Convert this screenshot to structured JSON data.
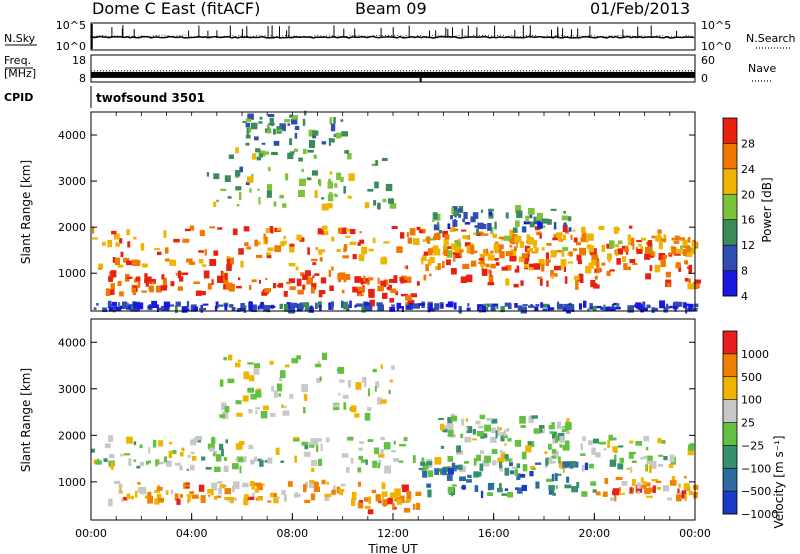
{
  "header": {
    "station": "Dome C East (fitACF)",
    "beam": "Beam 09",
    "date": "01/Feb/2013"
  },
  "side_labels": {
    "nsky": "N.Sky",
    "nsearch": "N.Search",
    "freq_line1": "Freq.",
    "freq_line2": "[MHz]",
    "nave": "Nave",
    "cpid": "CPID"
  },
  "cpid_value": "twofsound 3501",
  "chart_data": [
    {
      "type": "line",
      "name": "noise-panel",
      "left_ticks": [
        "10^5",
        "10^0"
      ],
      "right_ticks": [
        "10^5",
        "10^0"
      ],
      "note": "N.Sky solid trace near baseline with intermittent spikes; N.Search dotted"
    },
    {
      "type": "line",
      "name": "freq-nave-panel",
      "left_ticks": [
        "18",
        "8"
      ],
      "right_ticks": [
        "60",
        "0"
      ],
      "freq_level_mhz": 11,
      "nave_level": 25
    },
    {
      "type": "heatmap",
      "name": "power",
      "ylabel": "Slant Range [km]",
      "ylim": [
        180,
        4500
      ],
      "y_ticks": [
        1000,
        2000,
        3000,
        4000
      ],
      "colorbar": {
        "label": "Power [dB]",
        "ticks": [
          "28",
          "24",
          "20",
          "16",
          "12",
          "8",
          "4"
        ],
        "colors": [
          "#1818e0",
          "#2f4fb0",
          "#3b8a5a",
          "#7cc23a",
          "#f0b400",
          "#f07800",
          "#e82010"
        ]
      },
      "regions": [
        {
          "t": [
            0,
            24
          ],
          "r": [
            1100,
            2000
          ],
          "level": 0.78
        },
        {
          "t": [
            0.5,
            11
          ],
          "r": [
            550,
            1000
          ],
          "level": 0.9
        },
        {
          "t": [
            10.5,
            13
          ],
          "r": [
            300,
            900
          ],
          "level": 0.95
        },
        {
          "t": [
            12.8,
            24
          ],
          "r": [
            700,
            1500
          ],
          "level": 0.8
        },
        {
          "t": [
            13,
            24
          ],
          "r": [
            1400,
            1800
          ],
          "level": 0.7
        },
        {
          "t": [
            4.5,
            12
          ],
          "r": [
            2400,
            3700
          ],
          "level": 0.45
        },
        {
          "t": [
            13.5,
            19
          ],
          "r": [
            1900,
            2400
          ],
          "level": 0.3
        },
        {
          "t": [
            6,
            10
          ],
          "r": [
            3800,
            4500
          ],
          "level": 0.35
        },
        {
          "t": [
            0,
            24
          ],
          "r": [
            200,
            330
          ],
          "level": 0.15
        }
      ]
    },
    {
      "type": "heatmap",
      "name": "velocity",
      "ylabel": "Slant Range [km]",
      "xlabel": "Time UT",
      "x_ticks": [
        "00:00",
        "04:00",
        "08:00",
        "12:00",
        "16:00",
        "20:00",
        "00:00"
      ],
      "ylim": [
        180,
        4500
      ],
      "y_ticks": [
        1000,
        2000,
        3000,
        4000
      ],
      "colorbar": {
        "label": "Velocity [m s⁻¹]",
        "ticks": [
          "1000",
          "500",
          "100",
          "25",
          "−25",
          "−100",
          "−500",
          "−1000"
        ],
        "colors": [
          "#1a3ac8",
          "#2d6aa0",
          "#37906a",
          "#63c040",
          "#c8c8c8",
          "#f0b400",
          "#f08000",
          "#e81e1e"
        ]
      },
      "regions": [
        {
          "t": [
            0,
            24
          ],
          "r": [
            1250,
            1950
          ],
          "level": 0.5
        },
        {
          "t": [
            0.5,
            11
          ],
          "r": [
            550,
            1000
          ],
          "level": 0.72
        },
        {
          "t": [
            10.5,
            13
          ],
          "r": [
            350,
            950
          ],
          "level": 0.75
        },
        {
          "t": [
            13,
            20
          ],
          "r": [
            700,
            1400
          ],
          "level": 0.25
        },
        {
          "t": [
            20,
            24
          ],
          "r": [
            600,
            1100
          ],
          "level": 0.74
        },
        {
          "t": [
            5,
            12
          ],
          "r": [
            2400,
            3700
          ],
          "level": 0.55
        },
        {
          "t": [
            13.5,
            19
          ],
          "r": [
            1900,
            2400
          ],
          "level": 0.5
        }
      ]
    }
  ]
}
